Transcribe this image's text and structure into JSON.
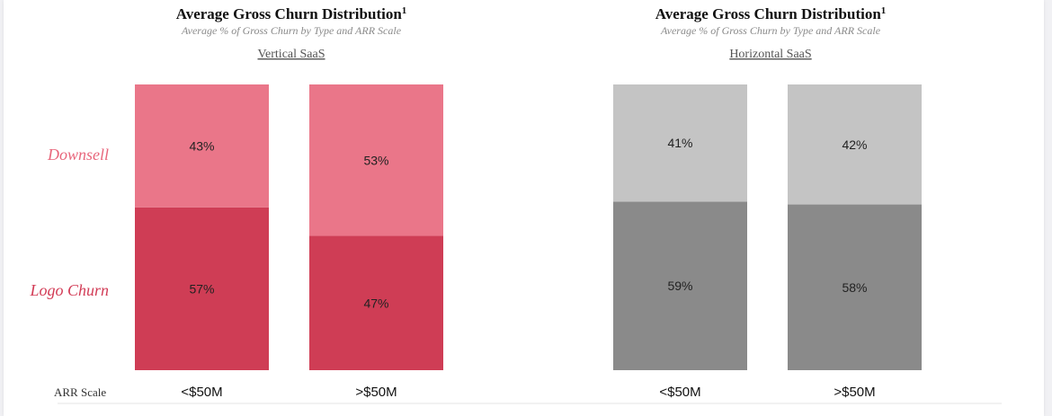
{
  "chart_data": [
    {
      "type": "bar",
      "stacked": true,
      "title": "Average Gross Churn Distribution",
      "title_superscript": "1",
      "subtitle": "Average % of Gross Churn by Type and ARR Scale",
      "group_label": "Vertical SaaS",
      "categories": [
        "<$50M",
        ">$50M"
      ],
      "series": [
        {
          "name": "Logo Churn",
          "values": [
            57,
            47
          ],
          "color": "#cf3d55"
        },
        {
          "name": "Downsell",
          "values": [
            43,
            53
          ],
          "color": "#ea7689"
        }
      ],
      "ylim": [
        0,
        100
      ],
      "xlabel": "ARR Scale",
      "grid": false
    },
    {
      "type": "bar",
      "stacked": true,
      "title": "Average Gross Churn Distribution",
      "title_superscript": "1",
      "subtitle": "Average % of Gross Churn by Type and ARR Scale",
      "group_label": "Horizontal SaaS",
      "categories": [
        "<$50M",
        ">$50M"
      ],
      "series": [
        {
          "name": "Logo Churn",
          "values": [
            59,
            58
          ],
          "color": "#8a8a8a"
        },
        {
          "name": "Downsell",
          "values": [
            41,
            42
          ],
          "color": "#c4c4c4"
        }
      ],
      "ylim": [
        0,
        100
      ],
      "grid": false
    }
  ],
  "row_labels": {
    "downsell": "Downsell",
    "logo_churn": "Logo Churn",
    "downsell_color": "#e8677c",
    "logo_churn_color": "#d23c56"
  },
  "value_suffix": "%"
}
